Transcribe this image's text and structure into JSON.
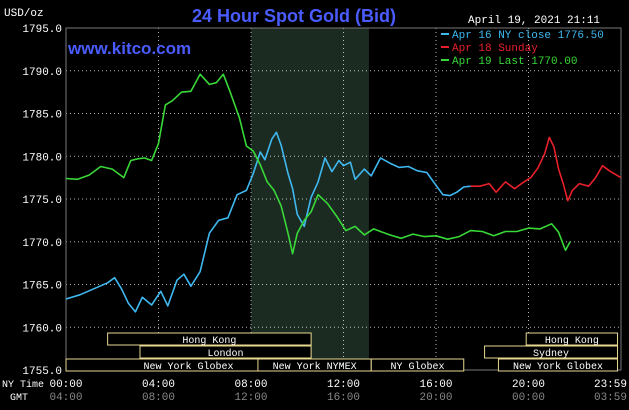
{
  "title": "24 Hour Spot Gold (Bid)",
  "watermark": "www.kitco.com",
  "timestamp": "April 19, 2021 21:11",
  "chart_data": {
    "type": "line",
    "y_unit": "USD/oz",
    "ylim": [
      1755,
      1795
    ],
    "yticks": [
      "1795.0",
      "1790.0",
      "1785.0",
      "1780.0",
      "1775.0",
      "1770.0",
      "1765.0",
      "1760.0",
      "1755.0"
    ],
    "x_hours_range": [
      0,
      24
    ],
    "shaded_hours": [
      8,
      13.1
    ],
    "ny_time_label": "NY Time",
    "gmt_label": "GMT",
    "ny_ticks": [
      "00:00",
      "04:00",
      "08:00",
      "12:00",
      "16:00",
      "20:00",
      "23:59"
    ],
    "gmt_ticks": [
      "04:00",
      "08:00",
      "12:00",
      "16:00",
      "20:00",
      "00:00",
      "03:59"
    ],
    "series": [
      {
        "name": "Apr 16 NY close 1776.50",
        "color": "#3fb8f0",
        "points": [
          [
            0,
            1763.3
          ],
          [
            0.6,
            1763.8
          ],
          [
            1.2,
            1764.5
          ],
          [
            1.8,
            1765.2
          ],
          [
            2.1,
            1765.8
          ],
          [
            2.4,
            1764.5
          ],
          [
            2.7,
            1762.8
          ],
          [
            3,
            1761.8
          ],
          [
            3.3,
            1763.5
          ],
          [
            3.7,
            1762.6
          ],
          [
            4.1,
            1764.2
          ],
          [
            4.4,
            1762.5
          ],
          [
            4.8,
            1765.5
          ],
          [
            5.1,
            1766.2
          ],
          [
            5.4,
            1764.8
          ],
          [
            5.8,
            1766.5
          ],
          [
            6.2,
            1771
          ],
          [
            6.6,
            1772.5
          ],
          [
            7.0,
            1772.8
          ],
          [
            7.4,
            1775.5
          ],
          [
            7.8,
            1776
          ],
          [
            8.1,
            1778
          ],
          [
            8.4,
            1780.5
          ],
          [
            8.6,
            1779.6
          ],
          [
            8.9,
            1782
          ],
          [
            9.1,
            1782.8
          ],
          [
            9.3,
            1781.3
          ],
          [
            9.6,
            1778
          ],
          [
            9.8,
            1776.2
          ],
          [
            10.0,
            1773.2
          ],
          [
            10.3,
            1771.8
          ],
          [
            10.6,
            1775.2
          ],
          [
            10.9,
            1777
          ],
          [
            11.2,
            1779.8
          ],
          [
            11.5,
            1778.2
          ],
          [
            11.8,
            1779.5
          ],
          [
            12.0,
            1778.9
          ],
          [
            12.3,
            1779.3
          ],
          [
            12.5,
            1777.3
          ],
          [
            12.9,
            1778.5
          ],
          [
            13.2,
            1777.7
          ],
          [
            13.6,
            1779.8
          ],
          [
            14.0,
            1779.2
          ],
          [
            14.4,
            1778.7
          ],
          [
            14.8,
            1778.8
          ],
          [
            15.2,
            1778.3
          ],
          [
            15.6,
            1778.1
          ],
          [
            16.0,
            1776.6
          ],
          [
            16.3,
            1775.5
          ],
          [
            16.6,
            1775.4
          ],
          [
            16.9,
            1775.8
          ],
          [
            17.2,
            1776.4
          ],
          [
            17.5,
            1776.5
          ]
        ]
      },
      {
        "name": "Apr 18 Sunday",
        "color": "#e8202a",
        "points": [
          [
            17.5,
            1776.5
          ],
          [
            17.9,
            1776.5
          ],
          [
            18.3,
            1776.8
          ],
          [
            18.6,
            1775.8
          ],
          [
            19.0,
            1777
          ],
          [
            19.4,
            1776.2
          ],
          [
            19.8,
            1777
          ],
          [
            20.1,
            1777.5
          ],
          [
            20.4,
            1778.6
          ],
          [
            20.7,
            1780.3
          ],
          [
            20.9,
            1782.2
          ],
          [
            21.1,
            1781.1
          ],
          [
            21.3,
            1778.5
          ],
          [
            21.5,
            1776.8
          ],
          [
            21.7,
            1774.8
          ],
          [
            21.9,
            1776
          ],
          [
            22.2,
            1776.8
          ],
          [
            22.6,
            1776.5
          ],
          [
            22.9,
            1777.5
          ],
          [
            23.2,
            1778.9
          ],
          [
            23.5,
            1778.3
          ],
          [
            23.99,
            1777.5
          ]
        ]
      },
      {
        "name": "Apr 19 Last 1770.00",
        "color": "#38d838",
        "points": [
          [
            0,
            1777.4
          ],
          [
            0.5,
            1777.3
          ],
          [
            1.0,
            1777.8
          ],
          [
            1.5,
            1778.8
          ],
          [
            2.0,
            1778.5
          ],
          [
            2.5,
            1777.5
          ],
          [
            2.8,
            1779.5
          ],
          [
            3.1,
            1779.7
          ],
          [
            3.4,
            1779.8
          ],
          [
            3.7,
            1779.5
          ],
          [
            4.0,
            1781.5
          ],
          [
            4.3,
            1786
          ],
          [
            4.6,
            1786.5
          ],
          [
            5.0,
            1787.5
          ],
          [
            5.4,
            1787.6
          ],
          [
            5.8,
            1789.6
          ],
          [
            6.2,
            1788.4
          ],
          [
            6.5,
            1788.6
          ],
          [
            6.8,
            1789.6
          ],
          [
            7.1,
            1787.5
          ],
          [
            7.5,
            1784.5
          ],
          [
            7.8,
            1781.2
          ],
          [
            8.1,
            1780.6
          ],
          [
            8.4,
            1779
          ],
          [
            8.7,
            1777
          ],
          [
            9.0,
            1776
          ],
          [
            9.3,
            1774.2
          ],
          [
            9.6,
            1771
          ],
          [
            9.8,
            1768.6
          ],
          [
            10.0,
            1771
          ],
          [
            10.3,
            1772.5
          ],
          [
            10.6,
            1773.5
          ],
          [
            10.9,
            1775.5
          ],
          [
            11.3,
            1774.5
          ],
          [
            11.7,
            1773
          ],
          [
            12.1,
            1771.3
          ],
          [
            12.5,
            1771.8
          ],
          [
            12.9,
            1770.8
          ],
          [
            13.3,
            1771.5
          ],
          [
            13.6,
            1771.2
          ],
          [
            14.0,
            1770.8
          ],
          [
            14.5,
            1770.4
          ],
          [
            15.0,
            1770.9
          ],
          [
            15.5,
            1770.6
          ],
          [
            16.0,
            1770.7
          ],
          [
            16.5,
            1770.3
          ],
          [
            17.0,
            1770.6
          ],
          [
            17.5,
            1771.3
          ],
          [
            18.0,
            1771.2
          ],
          [
            18.5,
            1770.7
          ],
          [
            19.0,
            1771.2
          ],
          [
            19.5,
            1771.2
          ],
          [
            20.0,
            1771.6
          ],
          [
            20.5,
            1771.5
          ],
          [
            21.0,
            1772.1
          ],
          [
            21.3,
            1771.1
          ],
          [
            21.6,
            1769
          ],
          [
            21.8,
            1770
          ]
        ]
      }
    ],
    "sessions": [
      {
        "label": "Hong Kong",
        "start": 1.8,
        "end": 10.6,
        "row": 0
      },
      {
        "label": "London",
        "start": 3.2,
        "end": 10.6,
        "row": 1
      },
      {
        "label": "New York Globex",
        "start": 0,
        "end": 10.6,
        "row": 2
      },
      {
        "label": "New York NYMEX",
        "start": 8.3,
        "end": 13.2,
        "row": 2
      },
      {
        "label": "NY Globex",
        "start": 13.2,
        "end": 17.2,
        "row": 2
      },
      {
        "label": "Hong Kong",
        "start": 19.9,
        "end": 23.85,
        "row": 0
      },
      {
        "label": "Sydney",
        "start": 18.1,
        "end": 23.85,
        "row": 1
      },
      {
        "label": "New York Globex",
        "start": 18.7,
        "end": 23.85,
        "row": 2
      }
    ]
  }
}
